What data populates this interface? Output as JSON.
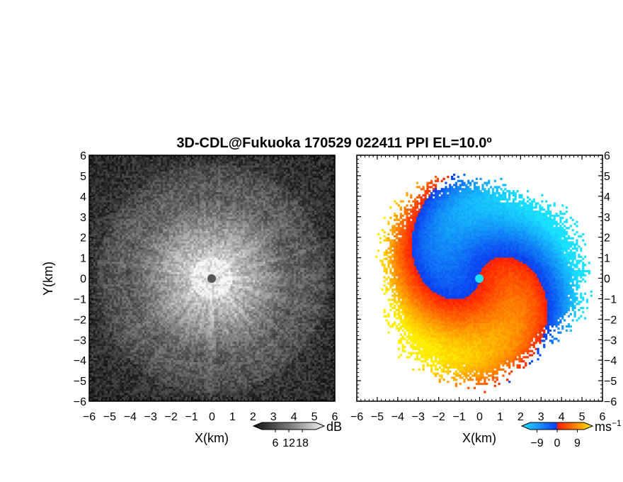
{
  "chart_data": {
    "title": "3D-CDL@Fukuoka 170529 022411 PPI EL=10.0º",
    "panels": [
      {
        "type": "heatmap",
        "variable": "intensity",
        "xlabel": "X(km)",
        "ylabel": "Y(km)",
        "xlim": [
          -6,
          6
        ],
        "ylim": [
          -6,
          6
        ],
        "xticks": [
          "−6",
          "−5",
          "−4",
          "−3",
          "−2",
          "−1",
          "0",
          "1",
          "2",
          "3",
          "4",
          "5",
          "6"
        ],
        "yticks": [
          "6",
          "5",
          "4",
          "3",
          "2",
          "1",
          "0",
          "−1",
          "−2",
          "−3",
          "−4",
          "−5",
          "−6"
        ],
        "colormap": "grayscale",
        "colorbar": {
          "ticks": [
            "6",
            "12",
            "18"
          ],
          "unit": "dB",
          "range": [
            0,
            24
          ]
        }
      },
      {
        "type": "heatmap",
        "variable": "doppler velocity",
        "xlabel": "X(km)",
        "xlim": [
          -6,
          6
        ],
        "ylim": [
          -6,
          6
        ],
        "xticks": [
          "−6",
          "−5",
          "−4",
          "−3",
          "−2",
          "−1",
          "0",
          "1",
          "2",
          "3",
          "4",
          "5",
          "6"
        ],
        "yticks": [
          "6",
          "5",
          "4",
          "3",
          "2",
          "1",
          "0",
          "−1",
          "−2",
          "−3",
          "−4",
          "−5",
          "−6"
        ],
        "colormap": "blue-cyan-red-yellow",
        "colorbar": {
          "ticks": [
            "−9",
            "0",
            "9"
          ],
          "unit": "ms",
          "unit_sup": "−1",
          "range": [
            -12,
            12
          ]
        }
      }
    ]
  },
  "colors": {
    "gray_dark": "#1a1a1a",
    "gray_light": "#f0f0f0",
    "vel_cyan": "#19e1ff",
    "vel_blue": "#0a3cf0",
    "vel_red": "#ff1e00",
    "vel_yellow": "#ffee00"
  }
}
